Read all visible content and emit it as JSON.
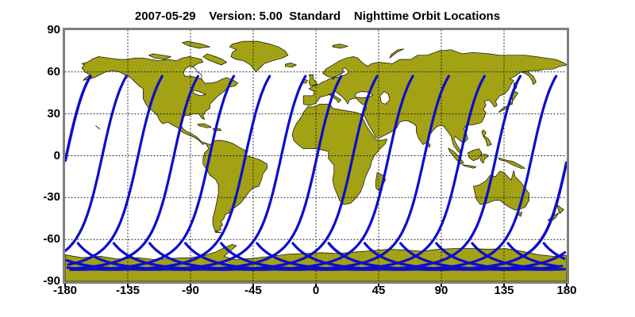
{
  "chart_data": {
    "type": "line",
    "title": "2007-05-29    Version: 5.00  Standard    Nighttime Orbit Locations",
    "xlabel": "",
    "ylabel": "",
    "xlim": [
      -180,
      180
    ],
    "ylim": [
      -90,
      90
    ],
    "x_ticks": [
      -180,
      -135,
      -90,
      -45,
      0,
      45,
      90,
      135,
      180
    ],
    "y_ticks": [
      90,
      60,
      30,
      0,
      -30,
      -60,
      -90
    ],
    "grid": "black dotted graticule every 45 deg longitude / 30 deg latitude",
    "projection": "equirectangular world map",
    "legend": "none",
    "series": [
      {
        "name": "nighttime orbit ground tracks",
        "count": 15,
        "equator_crossing_spacing_deg": 25.7,
        "descending_node_longitudes_deg": [
          -179.0,
          -153.3,
          -127.6,
          -101.9,
          -76.2,
          -50.5,
          -24.8,
          0.9,
          26.6,
          52.3,
          78.0,
          103.7,
          129.4,
          155.1,
          180.8
        ],
        "northern_end_latitude_deg": 57,
        "southern_vertex_latitude_deg": -81.6,
        "ascending_tail_end_latitude_deg": -63,
        "orbit_model": {
          "effective_inclination_deg": 81.6,
          "cos_orbit_inclination": -0.146,
          "earth_rotation_deg_per_arg_deg": 0.0713,
          "arg_start_deg": -58,
          "arg_end_deg": 116,
          "arg_step_deg": 1.5
        }
      }
    ]
  },
  "colors": {
    "land": "#a2a214",
    "land_outline": "#0a0a00",
    "ocean": "#ffffff",
    "track": "#0d0dcc",
    "frame": "#7f7f7f",
    "grid": "#111111",
    "text": "#000000"
  },
  "map": {
    "land": {
      "north_america": [
        -168,
        66,
        -164,
        67,
        -161,
        69,
        -156,
        71,
        -149,
        70,
        -141,
        69,
        -136,
        69,
        -130,
        70,
        -124,
        70,
        -119,
        69,
        -112,
        68,
        -106,
        69,
        -100,
        68,
        -96,
        70,
        -91,
        71,
        -86,
        70,
        -82,
        69,
        -81,
        67,
        -85,
        66,
        -88,
        64,
        -91,
        62,
        -93,
        59,
        -94,
        57,
        -90,
        57,
        -86,
        56,
        -82,
        55,
        -80,
        52,
        -75,
        52,
        -71,
        53,
        -67,
        55,
        -64,
        56,
        -59,
        54,
        -56,
        52,
        -58,
        50,
        -63,
        49,
        -66,
        46,
        -70,
        43,
        -72,
        41,
        -74,
        39,
        -76,
        37,
        -76,
        34,
        -79,
        32,
        -81,
        29,
        -80,
        26,
        -82,
        27,
        -84,
        30,
        -88,
        30,
        -91,
        29,
        -94,
        29,
        -96,
        26,
        -97,
        22,
        -95,
        19,
        -92,
        17,
        -88,
        15,
        -85,
        13,
        -82,
        10,
        -79,
        9,
        -81,
        8,
        -84,
        11,
        -87,
        13,
        -92,
        15,
        -96,
        17,
        -99,
        20,
        -103,
        22,
        -106,
        24,
        -110,
        23,
        -112,
        25,
        -114,
        29,
        -117,
        32,
        -120,
        34,
        -122,
        37,
        -124,
        41,
        -124,
        45,
        -124,
        48,
        -127,
        50,
        -130,
        53,
        -133,
        56,
        -137,
        58,
        -141,
        60,
        -146,
        61,
        -151,
        60,
        -155,
        58,
        -159,
        56,
        -163,
        55,
        -167,
        54,
        -165,
        56,
        -162,
        58,
        -166,
        60,
        -168,
        63,
        -166,
        65,
        -168,
        66
      ],
      "greenland": [
        -57,
        76,
        -60,
        74,
        -61,
        71,
        -57,
        69,
        -52,
        68,
        -47,
        65,
        -43,
        60,
        -40,
        63,
        -37,
        66,
        -31,
        68,
        -24,
        70,
        -20,
        72,
        -22,
        75,
        -27,
        78,
        -33,
        80,
        -42,
        82,
        -52,
        82,
        -60,
        80,
        -62,
        78,
        -57,
        76
      ],
      "baffin": [
        -78,
        73,
        -72,
        71,
        -67,
        69,
        -64,
        67,
        -68,
        65,
        -73,
        67,
        -78,
        69,
        -81,
        71,
        -78,
        73
      ],
      "victoria": [
        -117,
        73,
        -110,
        72,
        -104,
        71,
        -109,
        69,
        -116,
        70,
        -120,
        72,
        -117,
        73
      ],
      "ellesmere": [
        -92,
        82,
        -82,
        80,
        -76,
        78,
        -84,
        77,
        -92,
        79,
        -96,
        81,
        -92,
        82
      ],
      "south_america": [
        -79,
        9,
        -76,
        8,
        -72,
        11,
        -68,
        11,
        -63,
        10,
        -60,
        9,
        -55,
        6,
        -51,
        4,
        -50,
        0,
        -46,
        -1,
        -40,
        -3,
        -35,
        -6,
        -35,
        -9,
        -38,
        -13,
        -39,
        -17,
        -41,
        -22,
        -45,
        -23,
        -48,
        -26,
        -51,
        -30,
        -54,
        -34,
        -58,
        -37,
        -62,
        -39,
        -62,
        -41,
        -65,
        -42,
        -66,
        -45,
        -68,
        -47,
        -67,
        -50,
        -69,
        -51,
        -68,
        -53,
        -72,
        -54,
        -68,
        -55,
        -72,
        -55,
        -73,
        -52,
        -74,
        -49,
        -74,
        -45,
        -73,
        -41,
        -72,
        -37,
        -71,
        -32,
        -70,
        -27,
        -70,
        -21,
        -72,
        -17,
        -76,
        -14,
        -79,
        -9,
        -81,
        -6,
        -81,
        -2,
        -80,
        2,
        -77,
        5,
        -78,
        7,
        -79,
        9
      ],
      "africa": [
        -6,
        35,
        -2,
        35,
        3,
        37,
        10,
        37,
        12,
        34,
        17,
        33,
        23,
        32,
        29,
        31,
        32,
        30,
        33,
        28,
        35,
        24,
        37,
        20,
        40,
        16,
        43,
        11.5,
        47,
        11,
        51,
        12,
        50,
        9,
        46,
        5,
        42,
        0,
        40,
        -4,
        39,
        -8,
        37,
        -12,
        35,
        -17,
        34,
        -21,
        32,
        -26,
        28,
        -31,
        25,
        -34,
        20,
        -35,
        17,
        -32,
        15,
        -27,
        13,
        -22,
        12,
        -17,
        13,
        -12,
        13,
        -7,
        9,
        -2,
        9,
        3,
        5,
        4,
        0,
        5,
        -5,
        5,
        -9,
        5,
        -13,
        8,
        -16,
        11,
        -17,
        15,
        -16,
        19,
        -14,
        23,
        -11,
        27,
        -9,
        31,
        -6,
        35
      ],
      "madagascar": [
        44,
        -12,
        48,
        -14,
        50,
        -17,
        48,
        -21,
        45,
        -25,
        43,
        -23,
        43,
        -18,
        44,
        -12
      ],
      "eurasia": [
        -9,
        43,
        -9,
        37,
        -5,
        36,
        -1,
        37,
        1,
        39,
        3,
        42,
        7,
        43,
        10,
        44,
        14,
        46,
        18,
        43,
        21,
        40,
        23,
        37,
        24,
        40,
        27,
        41,
        29,
        41,
        33,
        37,
        36,
        36,
        36,
        33,
        34,
        31,
        35,
        28,
        38,
        22,
        41,
        17,
        43,
        13,
        45,
        12.5,
        48,
        14,
        54,
        17,
        58,
        20,
        60,
        24,
        63,
        25,
        66,
        25,
        70,
        23,
        72,
        21,
        72,
        17,
        74,
        12,
        77,
        8,
        80,
        10,
        81,
        14,
        84,
        18,
        87,
        21,
        90,
        22,
        92,
        21,
        94,
        18,
        97,
        14,
        98,
        10,
        99,
        7,
        102,
        3,
        104,
        1.5,
        103,
        5,
        101,
        8,
        99,
        12,
        100,
        14,
        103,
        11,
        106,
        9,
        109,
        12,
        108,
        16,
        106,
        19,
        108,
        22,
        112,
        22,
        116,
        23,
        119,
        24,
        121,
        28,
        122,
        31,
        120,
        33,
        122,
        36,
        121,
        39,
        124,
        40,
        126,
        38,
        128,
        35,
        130,
        36,
        129,
        39,
        132,
        43,
        135,
        44,
        138,
        47,
        140,
        51,
        142,
        54,
        139,
        55,
        143,
        57,
        147,
        60,
        152,
        60,
        156,
        57,
        158,
        53,
        156,
        51,
        155,
        54,
        153,
        57,
        150,
        59,
        147,
        60,
        155,
        61,
        160,
        61,
        164,
        62,
        170,
        62,
        175,
        64,
        180,
        65,
        179,
        66,
        177,
        67,
        172,
        69,
        165,
        70,
        158,
        71,
        150,
        72,
        141,
        72,
        132,
        72,
        124,
        73,
        113,
        74,
        105,
        73,
        97,
        76,
        88,
        75,
        80,
        72,
        73,
        72,
        68,
        69,
        60,
        69,
        55,
        66,
        45,
        67,
        40,
        66,
        37,
        64,
        33,
        67,
        30,
        70,
        27,
        71,
        22,
        70,
        17,
        68,
        12,
        65,
        7,
        62,
        5,
        59,
        8,
        57,
        11,
        56,
        13,
        55,
        9,
        55,
        8,
        54,
        5,
        53,
        2,
        51,
        -2,
        50,
        -5,
        48,
        -1,
        46,
        -2,
        43,
        -9,
        43
      ],
      "italy": [
        12,
        44,
        15,
        42,
        18,
        40,
        16,
        38,
        15,
        40,
        12,
        42,
        9,
        44,
        12,
        44
      ],
      "uk": [
        -4,
        50,
        -5,
        53,
        -4,
        56,
        -5,
        58,
        -2,
        58,
        -2,
        55,
        0,
        53,
        1,
        51,
        -4,
        50
      ],
      "ireland": [
        -10,
        52,
        -9,
        55,
        -6,
        54,
        -7,
        52,
        -10,
        52
      ],
      "iceland": [
        -22,
        64,
        -17,
        63.5,
        -14,
        65,
        -18,
        66.5,
        -22,
        65.5,
        -22,
        64
      ],
      "svalbard": [
        12,
        78,
        18,
        77,
        23,
        78.5,
        17,
        80,
        12,
        79,
        12,
        78
      ],
      "novaya_zemlya": [
        53,
        70,
        58,
        74,
        63,
        76.5,
        59,
        76,
        54,
        72.5,
        53,
        70
      ],
      "japan": [
        131,
        31,
        134,
        34,
        137,
        35.5,
        141,
        37,
        141,
        41,
        140,
        44,
        143,
        46,
        145,
        45,
        143,
        42,
        141,
        39,
        137,
        34,
        133,
        32,
        131,
        31
      ],
      "sakhalin": [
        142,
        46,
        144,
        49,
        144,
        53,
        142,
        52,
        142,
        48,
        142,
        46
      ],
      "philippines": [
        120,
        18.5,
        122,
        17,
        121,
        14,
        124,
        12,
        126,
        8,
        123,
        7,
        122,
        11,
        120,
        14,
        119,
        17,
        120,
        18.5
      ],
      "borneo": [
        109,
        2,
        113,
        4,
        117,
        5,
        119,
        2,
        117,
        -2,
        113,
        -3.5,
        110,
        -1.5,
        109,
        2
      ],
      "sumatra": [
        95,
        5.5,
        99,
        3,
        103,
        -1,
        106,
        -5,
        104,
        -6,
        100,
        -2,
        96,
        3,
        95,
        5.5
      ],
      "java": [
        105,
        -6.5,
        110,
        -7,
        115,
        -8,
        113,
        -9,
        107,
        -7.5,
        105,
        -6.5
      ],
      "sulawesi": [
        119,
        1,
        122,
        1,
        124,
        0,
        121,
        -2.5,
        120,
        -5.5,
        118,
        -3,
        119,
        1
      ],
      "new_guinea": [
        131,
        -1.5,
        136,
        -3,
        141,
        -4,
        146,
        -6.5,
        150,
        -9,
        147,
        -9,
        142,
        -7,
        136,
        -4,
        132,
        -3,
        131,
        -1.5
      ],
      "australia": [
        113,
        -22,
        114,
        -26,
        115,
        -31,
        118,
        -35,
        123,
        -34,
        128,
        -32,
        132,
        -32,
        136,
        -35,
        139,
        -37,
        143,
        -39,
        147,
        -38,
        150,
        -37,
        153,
        -32,
        153,
        -27,
        150,
        -23,
        147,
        -19,
        143,
        -15,
        142,
        -10.7,
        140,
        -17.5,
        135,
        -12,
        132,
        -11,
        129,
        -15,
        125,
        -14,
        122,
        -18,
        117,
        -21,
        113,
        -22
      ],
      "tasmania": [
        145,
        -41,
        148,
        -40.5,
        147,
        -43.5,
        144.5,
        -42,
        145,
        -41
      ],
      "nz_north": [
        173,
        -35,
        176,
        -37.5,
        178,
        -38.5,
        175,
        -41.5,
        174,
        -39,
        173,
        -35
      ],
      "nz_south": [
        166.5,
        -46,
        170,
        -43.5,
        174,
        -41,
        172,
        -44.5,
        168,
        -47.5,
        166.5,
        -46
      ],
      "sri_lanka": [
        80,
        9.5,
        82,
        8,
        81.5,
        6,
        80,
        7.5,
        80,
        9.5
      ],
      "cuba": [
        -85,
        22.5,
        -80,
        23,
        -75,
        20.5,
        -78,
        20,
        -84,
        21.5,
        -85,
        22.5
      ],
      "hispaniola": [
        -74,
        19.5,
        -69,
        19.5,
        -68,
        18,
        -73,
        18,
        -74,
        19.5
      ],
      "hawaii": [
        -158,
        21.5,
        -155,
        19,
        -157,
        20.5,
        -158,
        21.5
      ],
      "antarctica": [
        -180,
        -71,
        -168,
        -73,
        -155,
        -72,
        -142,
        -74,
        -128,
        -73,
        -115,
        -74.5,
        -102,
        -73.5,
        -90,
        -73,
        -80,
        -71.5,
        -72,
        -69,
        -66,
        -66,
        -60,
        -63.5,
        -57,
        -64.5,
        -61,
        -68,
        -66,
        -72,
        -58,
        -74.5,
        -45,
        -73.5,
        -32,
        -72,
        -20,
        -70.5,
        -8,
        -70,
        4,
        -69.5,
        16,
        -70,
        28,
        -69,
        40,
        -68,
        52,
        -67,
        64,
        -67.5,
        76,
        -68.5,
        88,
        -67,
        100,
        -66.5,
        112,
        -66.5,
        124,
        -67,
        136,
        -66.5,
        148,
        -68.5,
        160,
        -71,
        170,
        -72,
        180,
        -71.5,
        180,
        -90,
        -180,
        -90
      ]
    },
    "water": {
      "hudson_bay": [
        -94,
        57,
        -90,
        57,
        -86,
        56,
        -82,
        55,
        -82,
        58,
        -85,
        60,
        -87,
        63,
        -91,
        64,
        -94,
        62,
        -95,
        59,
        -94,
        57
      ],
      "great_lakes": [
        -88,
        47,
        -84,
        46,
        -79,
        44,
        -83,
        43,
        -88,
        45,
        -88,
        47
      ],
      "baltic_sea": [
        12,
        56,
        17,
        56.5,
        20,
        57.5,
        23,
        59,
        23,
        61,
        21,
        63,
        19,
        62,
        20,
        60,
        17,
        58,
        13,
        56.5,
        12,
        56
      ],
      "black_sea": [
        28,
        42,
        33,
        41.5,
        38,
        42,
        41,
        43.5,
        38,
        45.5,
        33,
        46,
        29,
        45,
        28,
        42
      ],
      "caspian_sea": [
        47,
        38,
        50,
        37,
        53,
        40,
        52,
        44,
        49,
        46,
        46,
        43,
        47,
        38
      ]
    }
  }
}
